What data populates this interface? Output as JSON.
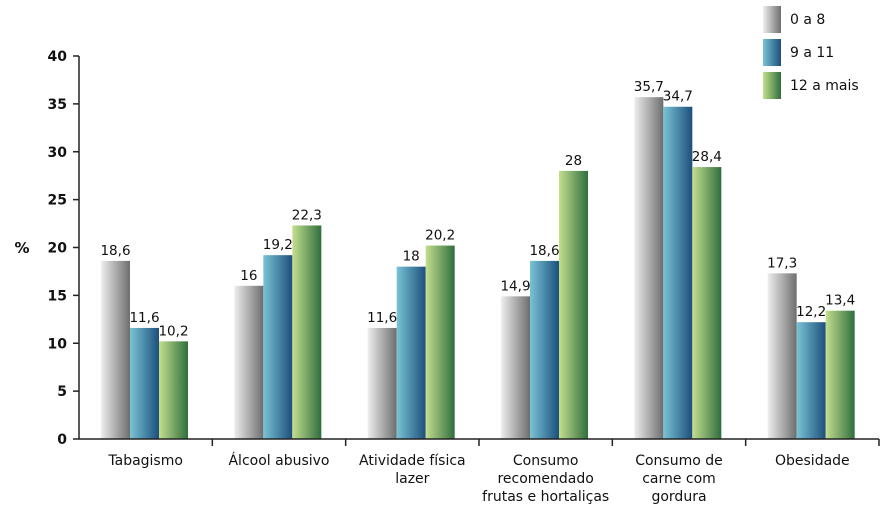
{
  "chart_data": {
    "type": "bar",
    "ylabel": "%",
    "ylim": [
      0,
      40
    ],
    "yticks": [
      "0",
      "5",
      "10",
      "15",
      "20",
      "25",
      "30",
      "35",
      "40"
    ],
    "categories": [
      [
        "Tabagismo"
      ],
      [
        "Álcool abusivo"
      ],
      [
        "Atividade física",
        "lazer"
      ],
      [
        "Consumo",
        "recomendado",
        "frutas e hortaliças"
      ],
      [
        "Consumo de",
        "carne com",
        "gordura"
      ],
      [
        "Obesidade"
      ]
    ],
    "series": [
      {
        "name": "0 a 8",
        "values": [
          18.6,
          16,
          11.6,
          14.9,
          35.7,
          17.3
        ],
        "labels": [
          "18,6",
          "16",
          "11,6",
          "14,9",
          "35,7",
          "17,3"
        ]
      },
      {
        "name": "9 a 11",
        "values": [
          11.6,
          19.2,
          18,
          18.6,
          34.7,
          12.2
        ],
        "labels": [
          "11,6",
          "19,2",
          "18",
          "18,6",
          "34,7",
          "12,2"
        ]
      },
      {
        "name": "12 a mais",
        "values": [
          10.2,
          22.3,
          20.2,
          28,
          28.4,
          13.4
        ],
        "labels": [
          "10,2",
          "22,3",
          "20,2",
          "28",
          "28,4",
          "13,4"
        ]
      }
    ],
    "legend_position": "top-right",
    "grid": false
  },
  "colors": {
    "series": [
      {
        "light": "#eeeeee",
        "dark": "#6e6e6e"
      },
      {
        "light": "#79c4d6",
        "dark": "#1d4f7c"
      },
      {
        "light": "#c3df8e",
        "dark": "#2f6e3d"
      }
    ],
    "axis": "#222222"
  }
}
